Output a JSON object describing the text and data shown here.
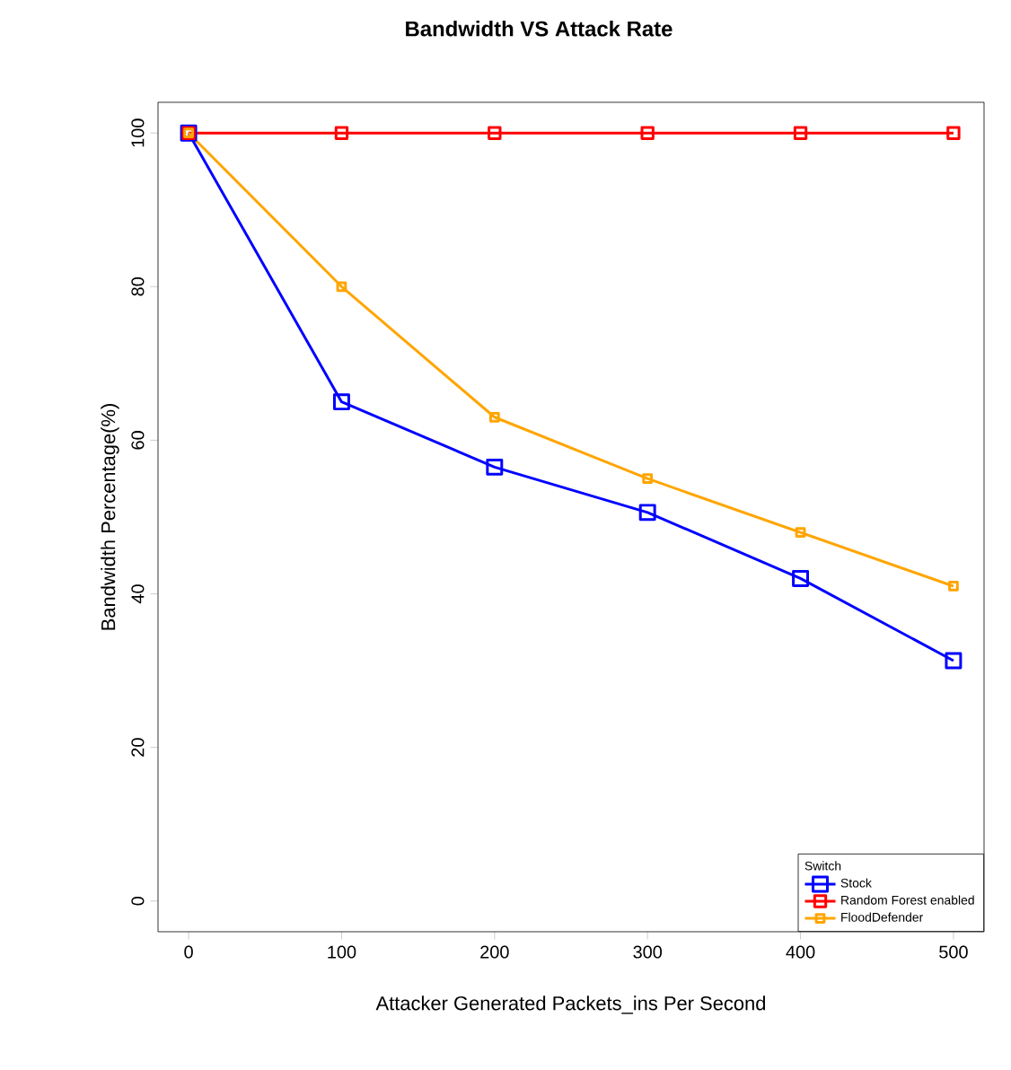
{
  "chart_data": {
    "type": "line",
    "title": "Bandwidth VS Attack Rate",
    "xlabel": "Attacker Generated Packets_ins Per Second",
    "ylabel": "Bandwidth Percentage(%)",
    "legend_title": "Switch",
    "x": [
      0,
      100,
      200,
      300,
      400,
      500
    ],
    "series": [
      {
        "name": "Stock",
        "color": "#0000ff",
        "values": [
          100,
          65,
          56.5,
          50.6,
          42,
          31.3
        ]
      },
      {
        "name": "Random Forest enabled",
        "color": "#ff0000",
        "values": [
          100,
          100,
          100,
          100,
          100,
          100
        ]
      },
      {
        "name": "FloodDefender",
        "color": "#ffa500",
        "values": [
          100,
          80,
          63,
          55,
          48,
          41
        ]
      }
    ],
    "xlim": [
      -20,
      520
    ],
    "ylim": [
      -4,
      104
    ],
    "xticks": [
      0,
      100,
      200,
      300,
      400,
      500
    ],
    "yticks": [
      0,
      20,
      40,
      60,
      80,
      100
    ],
    "legend": "bottom right",
    "marker": "square",
    "line_style": "solid",
    "grid": false
  }
}
